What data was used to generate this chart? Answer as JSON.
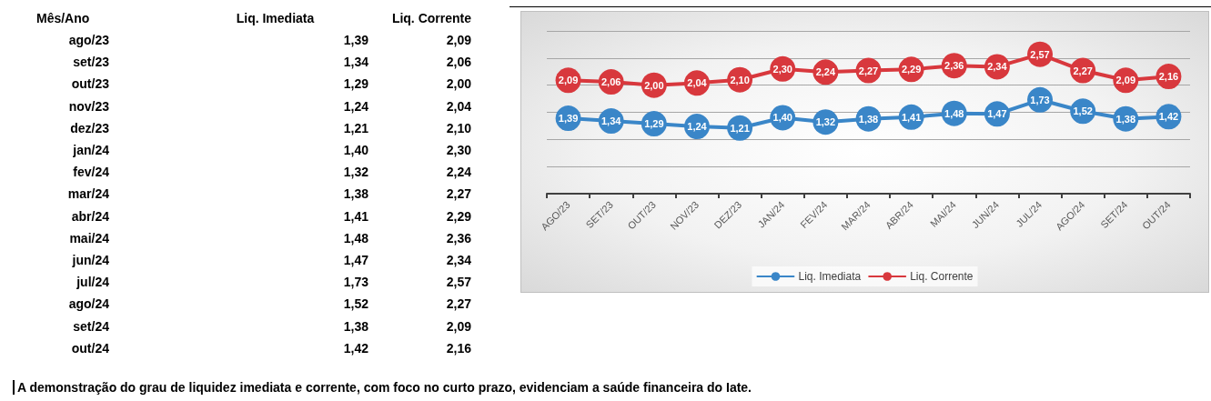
{
  "chart_data": [
    {
      "type": "other",
      "xlabel": "Mês/Ano",
      "categories": [
        "ago/23",
        "set/23",
        "out/23",
        "nov/23",
        "dez/23",
        "jan/24",
        "fev/24",
        "mar/24",
        "abr/24",
        "mai/24",
        "jun/24",
        "jul/24",
        "ago/24",
        "set/24",
        "out/24"
      ],
      "annotations": [
        "A demonstração do grau de liquidez imediata e corrente, com foco no curto prazo, evidenciam a saúde financeira do Iate."
      ]
    },
    {
      "type": "line",
      "categories": [
        "AGO/23",
        "SET/23",
        "OUT/23",
        "NOV/23",
        "DEZ/23",
        "JAN/24",
        "FEV/24",
        "MAR/24",
        "ABR/24",
        "MAI/24",
        "JUN/24",
        "JUL/24",
        "AGO/24",
        "SET/24",
        "OUT/24"
      ],
      "series": [
        {
          "name": "Liq. Imediata",
          "color": "#3a86c8",
          "values": [
            1.39,
            1.34,
            1.29,
            1.24,
            1.21,
            1.4,
            1.32,
            1.38,
            1.41,
            1.48,
            1.47,
            1.73,
            1.52,
            1.38,
            1.42
          ],
          "value_labels": [
            "1,39",
            "1,34",
            "1,29",
            "1,24",
            "1,21",
            "1,40",
            "1,32",
            "1,38",
            "1,41",
            "1,48",
            "1,47",
            "1,73",
            "1,52",
            "1,38",
            "1,42"
          ]
        },
        {
          "name": "Liq. Corrente",
          "color": "#d8383d",
          "values": [
            2.09,
            2.06,
            2.0,
            2.04,
            2.1,
            2.3,
            2.24,
            2.27,
            2.29,
            2.36,
            2.34,
            2.57,
            2.27,
            2.09,
            2.16
          ],
          "value_labels": [
            "2,09",
            "2,06",
            "2,00",
            "2,04",
            "2,10",
            "2,30",
            "2,24",
            "2,27",
            "2,29",
            "2,36",
            "2,34",
            "2,57",
            "2,27",
            "2,09",
            "2,16"
          ]
        }
      ],
      "ylim": [
        0,
        3
      ],
      "yticks": [
        {
          "value": 0,
          "label": null
        },
        {
          "value": 0.5,
          "label": null
        },
        {
          "value": 1,
          "label": null
        },
        {
          "value": 1.5,
          "label": null
        },
        {
          "value": 2,
          "label": null
        },
        {
          "value": 2.5,
          "label": null
        },
        {
          "value": 3,
          "label": null
        }
      ],
      "tick_labels": "x",
      "grid": "y",
      "legend": "bottom",
      "marker": "circle",
      "line_style": "solid"
    }
  ]
}
